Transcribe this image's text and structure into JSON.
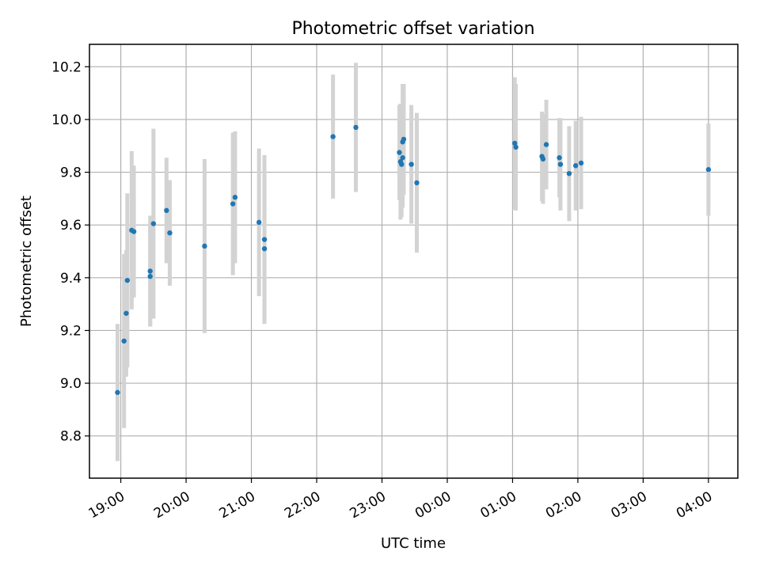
{
  "chart_data": {
    "type": "scatter",
    "title": "Photometric offset variation",
    "xlabel": "UTC time",
    "ylabel": "Photometric offset",
    "xlim_hours": [
      18.52,
      28.45
    ],
    "ylim": [
      8.64,
      10.285
    ],
    "grid": true,
    "x_ticks": [
      {
        "label": "19:00",
        "hour": 19
      },
      {
        "label": "20:00",
        "hour": 20
      },
      {
        "label": "21:00",
        "hour": 21
      },
      {
        "label": "22:00",
        "hour": 22
      },
      {
        "label": "23:00",
        "hour": 23
      },
      {
        "label": "00:00",
        "hour": 24
      },
      {
        "label": "01:00",
        "hour": 25
      },
      {
        "label": "02:00",
        "hour": 26
      },
      {
        "label": "03:00",
        "hour": 27
      },
      {
        "label": "04:00",
        "hour": 28
      }
    ],
    "y_ticks": [
      8.8,
      9.0,
      9.2,
      9.4,
      9.6,
      9.8,
      10.0,
      10.2
    ],
    "y_tick_labels": [
      "8.8",
      "9.0",
      "9.2",
      "9.4",
      "9.6",
      "9.8",
      "10.0",
      "10.2"
    ],
    "colors": {
      "point": "#1f77b4",
      "error_bar": "#d3d3d3",
      "grid": "#b0b0b0"
    },
    "points": [
      {
        "time": "18:57",
        "y": 8.965,
        "yerr": 0.26
      },
      {
        "time": "19:03",
        "y": 9.16,
        "yerr": 0.33
      },
      {
        "time": "19:05",
        "y": 9.265,
        "yerr": 0.24
      },
      {
        "time": "19:06",
        "y": 9.39,
        "yerr": 0.33
      },
      {
        "time": "19:10",
        "y": 9.58,
        "yerr": 0.3
      },
      {
        "time": "19:12",
        "y": 9.575,
        "yerr": 0.25
      },
      {
        "time": "19:27",
        "y": 9.425,
        "yerr": 0.21
      },
      {
        "time": "19:27",
        "y": 9.405,
        "yerr": 0.19
      },
      {
        "time": "19:30",
        "y": 9.605,
        "yerr": 0.36
      },
      {
        "time": "19:42",
        "y": 9.655,
        "yerr": 0.2
      },
      {
        "time": "19:45",
        "y": 9.57,
        "yerr": 0.2
      },
      {
        "time": "20:17",
        "y": 9.52,
        "yerr": 0.33
      },
      {
        "time": "20:43",
        "y": 9.68,
        "yerr": 0.27
      },
      {
        "time": "20:45",
        "y": 9.705,
        "yerr": 0.25
      },
      {
        "time": "21:07",
        "y": 9.61,
        "yerr": 0.28
      },
      {
        "time": "21:12",
        "y": 9.545,
        "yerr": 0.32
      },
      {
        "time": "21:12",
        "y": 9.51,
        "yerr": 0.28
      },
      {
        "time": "22:15",
        "y": 9.935,
        "yerr": 0.235
      },
      {
        "time": "22:36",
        "y": 9.97,
        "yerr": 0.245
      },
      {
        "time": "23:16",
        "y": 9.875,
        "yerr": 0.18
      },
      {
        "time": "23:17",
        "y": 9.84,
        "yerr": 0.22
      },
      {
        "time": "23:18",
        "y": 9.83,
        "yerr": 0.2
      },
      {
        "time": "23:19",
        "y": 9.855,
        "yerr": 0.19
      },
      {
        "time": "23:19",
        "y": 9.915,
        "yerr": 0.22
      },
      {
        "time": "23:20",
        "y": 9.925,
        "yerr": 0.21
      },
      {
        "time": "23:27",
        "y": 9.83,
        "yerr": 0.225
      },
      {
        "time": "23:32",
        "y": 9.76,
        "yerr": 0.265
      },
      {
        "time": "01:02",
        "y": 9.91,
        "yerr": 0.25
      },
      {
        "time": "01:03",
        "y": 9.895,
        "yerr": 0.24
      },
      {
        "time": "01:27",
        "y": 9.86,
        "yerr": 0.17
      },
      {
        "time": "01:28",
        "y": 9.85,
        "yerr": 0.17
      },
      {
        "time": "01:31",
        "y": 9.905,
        "yerr": 0.17
      },
      {
        "time": "01:43",
        "y": 9.855,
        "yerr": 0.15
      },
      {
        "time": "01:44",
        "y": 9.83,
        "yerr": 0.175
      },
      {
        "time": "01:52",
        "y": 9.795,
        "yerr": 0.18
      },
      {
        "time": "01:58",
        "y": 9.825,
        "yerr": 0.17
      },
      {
        "time": "02:03",
        "y": 9.835,
        "yerr": 0.175
      },
      {
        "time": "04:00",
        "y": 9.81,
        "yerr": 0.175
      }
    ]
  }
}
